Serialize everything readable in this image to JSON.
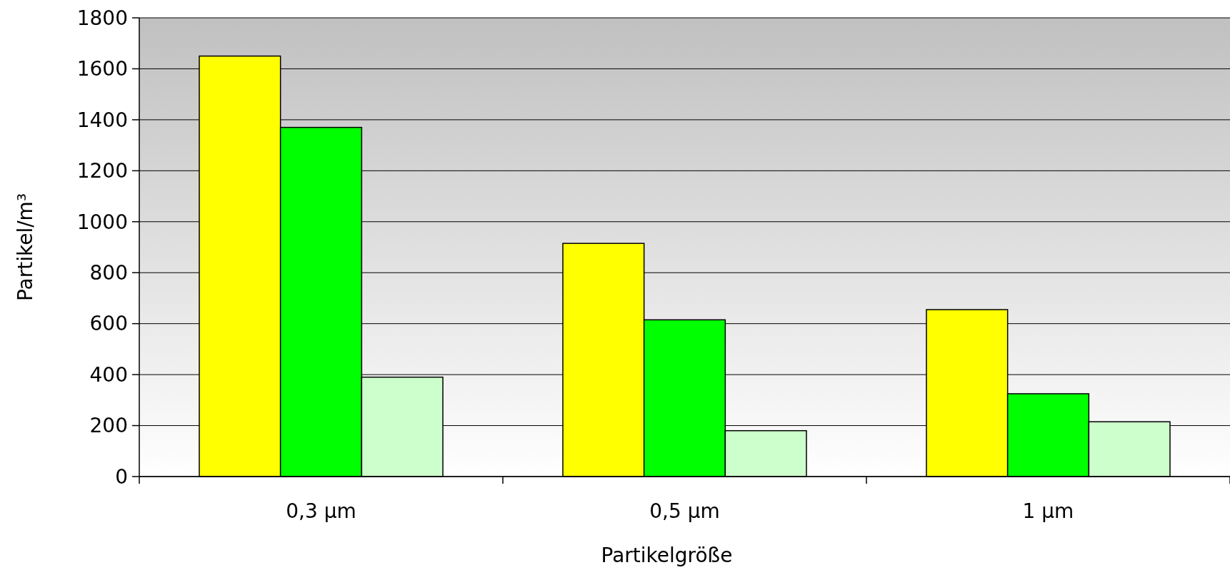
{
  "chart_data": {
    "type": "bar",
    "xlabel": "Partikelgröße",
    "ylabel": "Partikel/m³",
    "categories": [
      "0,3 µm",
      "0,5 µm",
      "1 µm"
    ],
    "series": [
      {
        "color": "#ffff00",
        "values": [
          1650,
          915,
          655
        ]
      },
      {
        "color": "#00ff00",
        "values": [
          1370,
          615,
          325
        ]
      },
      {
        "color": "#ccffcc",
        "values": [
          390,
          180,
          215
        ]
      }
    ],
    "ylim": [
      0,
      1800
    ],
    "yticks": [
      0,
      200,
      400,
      600,
      800,
      1000,
      1200,
      1400,
      1600,
      1800
    ],
    "grid": "y"
  }
}
